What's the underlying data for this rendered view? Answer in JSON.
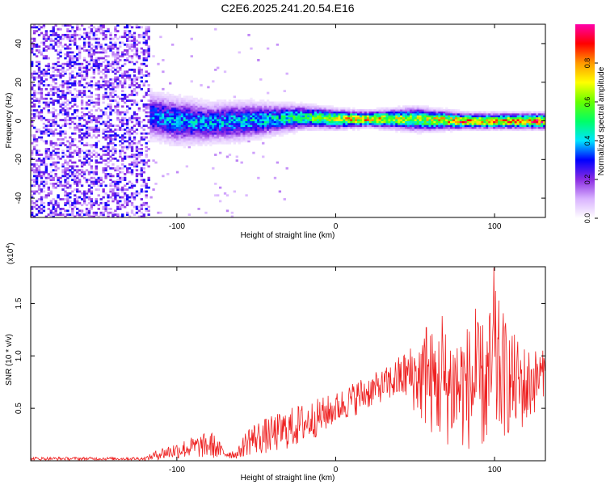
{
  "figure_title": "C2E6.2025.241.20.54.E16",
  "chart_data": [
    {
      "type": "heatmap",
      "title": "C2E6.2025.241.20.54.E16",
      "xlabel": "Height of straight line (km)",
      "ylabel": "Frequency (Hz)",
      "xlim": [
        -192,
        132
      ],
      "ylim": [
        -50,
        50
      ],
      "x_ticks": [
        -100,
        0,
        100
      ],
      "x_tick_labels": [
        "-100",
        "0",
        "100"
      ],
      "y_ticks": [
        -40,
        -20,
        0,
        20,
        40
      ],
      "y_tick_labels": [
        "-40",
        "-20",
        "0",
        "20",
        "40"
      ],
      "colorbar": {
        "label": "Normalized spectral amplitude",
        "range": [
          0,
          1
        ],
        "ticks": [
          0.0,
          0.2,
          0.4,
          0.6,
          0.8
        ],
        "tick_labels": [
          "0.0",
          "0.2",
          "0.4",
          "0.6",
          "0.8"
        ],
        "colors": [
          "#ffffff",
          "#d9b3ff",
          "#8a2be2",
          "#0000ff",
          "#00e5ff",
          "#00ff66",
          "#66ff00",
          "#ffff00",
          "#ff9900",
          "#ff0000",
          "#ff00aa"
        ]
      },
      "noise_region": {
        "x_range": [
          -192,
          -118
        ],
        "amplitude": 0.25
      },
      "ridge": [
        {
          "x": -118,
          "freq": 3,
          "amplitude": 0.35,
          "spread": 6
        },
        {
          "x": -100,
          "freq": 0,
          "amplitude": 0.4,
          "spread": 6
        },
        {
          "x": -80,
          "freq": -1,
          "amplitude": 0.4,
          "spread": 5
        },
        {
          "x": -60,
          "freq": 0,
          "amplitude": 0.42,
          "spread": 5
        },
        {
          "x": -40,
          "freq": 1,
          "amplitude": 0.45,
          "spread": 4
        },
        {
          "x": -20,
          "freq": 2,
          "amplitude": 0.55,
          "spread": 3
        },
        {
          "x": 0,
          "freq": 1,
          "amplitude": 0.7,
          "spread": 2.5
        },
        {
          "x": 20,
          "freq": 1,
          "amplitude": 0.8,
          "spread": 2
        },
        {
          "x": 50,
          "freq": 1,
          "amplitude": 0.65,
          "spread": 3
        },
        {
          "x": 80,
          "freq": 0,
          "amplitude": 0.85,
          "spread": 2
        },
        {
          "x": 100,
          "freq": 0,
          "amplitude": 0.8,
          "spread": 2
        },
        {
          "x": 132,
          "freq": 0,
          "amplitude": 0.9,
          "spread": 2
        }
      ]
    },
    {
      "type": "line",
      "xlabel": "Height of straight line (km)",
      "ylabel": "SNR (10 * v/v)",
      "y_multiplier_label": "(x10",
      "y_multiplier_exponent": "4",
      "xlim": [
        -192,
        132
      ],
      "ylim": [
        0,
        1.85
      ],
      "x_ticks": [
        -100,
        0,
        100
      ],
      "x_tick_labels": [
        "-100",
        "0",
        "100"
      ],
      "y_ticks": [
        0.5,
        1.0,
        1.5
      ],
      "y_tick_labels": [
        "0.5",
        "1.0",
        "1.5"
      ],
      "color": "#ee2020",
      "series": [
        {
          "name": "SNR",
          "envelope": [
            {
              "x": -192,
              "mean": 0.02,
              "amp": 0.015
            },
            {
              "x": -120,
              "mean": 0.02,
              "amp": 0.015
            },
            {
              "x": -110,
              "mean": 0.07,
              "amp": 0.06
            },
            {
              "x": -90,
              "mean": 0.13,
              "amp": 0.1
            },
            {
              "x": -78,
              "mean": 0.15,
              "amp": 0.13
            },
            {
              "x": -70,
              "mean": 0.07,
              "amp": 0.05
            },
            {
              "x": -62,
              "mean": 0.06,
              "amp": 0.04
            },
            {
              "x": -55,
              "mean": 0.2,
              "amp": 0.15
            },
            {
              "x": -40,
              "mean": 0.25,
              "amp": 0.18
            },
            {
              "x": -25,
              "mean": 0.33,
              "amp": 0.2
            },
            {
              "x": -10,
              "mean": 0.42,
              "amp": 0.18
            },
            {
              "x": 0,
              "mean": 0.5,
              "amp": 0.15
            },
            {
              "x": 15,
              "mean": 0.62,
              "amp": 0.17
            },
            {
              "x": 30,
              "mean": 0.72,
              "amp": 0.15
            },
            {
              "x": 45,
              "mean": 0.82,
              "amp": 0.25
            },
            {
              "x": 55,
              "mean": 0.78,
              "amp": 0.45
            },
            {
              "x": 65,
              "mean": 0.72,
              "amp": 0.55
            },
            {
              "x": 80,
              "mean": 0.7,
              "amp": 0.6
            },
            {
              "x": 95,
              "mean": 0.72,
              "amp": 0.62
            },
            {
              "x": 100,
              "mean": 0.9,
              "amp": 0.75
            },
            {
              "x": 110,
              "mean": 0.75,
              "amp": 0.5
            },
            {
              "x": 120,
              "mean": 0.7,
              "amp": 0.4
            },
            {
              "x": 132,
              "mean": 0.85,
              "amp": 0.2
            }
          ],
          "peaks": [
            {
              "x": 99.5,
              "y": 1.84
            },
            {
              "x": 88,
              "y": 1.45
            },
            {
              "x": 57,
              "y": 1.27
            },
            {
              "x": 67,
              "y": 1.38
            }
          ]
        }
      ]
    }
  ]
}
